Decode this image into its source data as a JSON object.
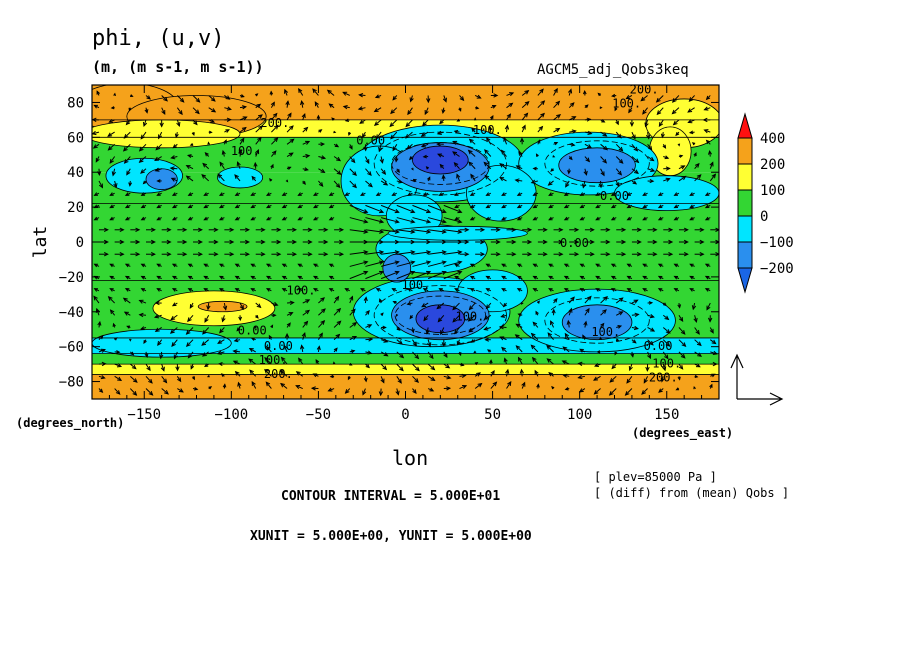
{
  "header": {
    "title": "phi, (u,v)",
    "units": "(m, (m s-1, m s-1))",
    "run": "AGCM5_adj_Qobs3keq"
  },
  "footer": {
    "deg_north": "(degrees_north)",
    "deg_east": "(degrees_east)",
    "plev": "[ plev=85000 Pa ]",
    "diff": "[ (diff) from (mean) Qobs ]",
    "contour_interval": "CONTOUR INTERVAL = 5.000E+01",
    "vector_units": "XUNIT = 5.000E+00, YUNIT = 5.000E+00"
  },
  "chart_data": {
    "type": "heatmap",
    "variable": "phi",
    "xlabel": "lon",
    "ylabel": "lat",
    "xlim": [
      -180,
      180
    ],
    "ylim": [
      -90,
      90
    ],
    "xticks": [
      -150,
      -100,
      -50,
      0,
      50,
      100,
      150
    ],
    "yticks": [
      -80,
      -60,
      -40,
      -20,
      0,
      20,
      40,
      60,
      80
    ],
    "colorbar": {
      "labels": [
        "400",
        "200",
        "100",
        "0",
        "-100",
        "-200"
      ],
      "bins": [
        {
          "range": [
            200,
            400
          ],
          "color": "#f5a21b"
        },
        {
          "range": [
            100,
            200
          ],
          "color": "#ffff33"
        },
        {
          "range": [
            0,
            100
          ],
          "color": "#33d633"
        },
        {
          "range": [
            -100,
            0
          ],
          "color": "#00e5ff"
        },
        {
          "range": [
            -200,
            -100
          ],
          "color": "#2a8fee"
        }
      ],
      "extend_high_color": "#ff1010",
      "extend_low_color": "#1a66e6",
      "extra_fill_color": "#2a48dd"
    },
    "contour_labels": [
      {
        "text": "200.",
        "lon": 137,
        "lat": 85
      },
      {
        "text": "100.",
        "lon": 127,
        "lat": 77
      },
      {
        "text": "200.",
        "lon": -75,
        "lat": 66
      },
      {
        "text": "100.",
        "lon": 47,
        "lat": 62
      },
      {
        "text": "0.00",
        "lon": -20,
        "lat": 56
      },
      {
        "text": "100.",
        "lon": -92,
        "lat": 50
      },
      {
        "text": "0.00",
        "lon": 120,
        "lat": 24
      },
      {
        "text": "0.00",
        "lon": 97,
        "lat": -3
      },
      {
        "text": "100.",
        "lon": -60,
        "lat": -30
      },
      {
        "text": "100.",
        "lon": 6,
        "lat": -27
      },
      {
        "text": "100.",
        "lon": 37,
        "lat": -45
      },
      {
        "text": "0.00",
        "lon": -88,
        "lat": -53
      },
      {
        "text": "100.",
        "lon": 115,
        "lat": -54
      },
      {
        "text": "0.00",
        "lon": -73,
        "lat": -62
      },
      {
        "text": "0.00",
        "lon": 145,
        "lat": -62
      },
      {
        "text": "100.",
        "lon": -76,
        "lat": -70
      },
      {
        "text": "100.",
        "lon": 150,
        "lat": -72
      },
      {
        "text": "200.",
        "lon": -73,
        "lat": -78
      },
      {
        "text": "200.",
        "lon": 148,
        "lat": -80
      }
    ],
    "vector_reference": {
      "xunit": 5.0,
      "yunit": 5.0
    }
  }
}
